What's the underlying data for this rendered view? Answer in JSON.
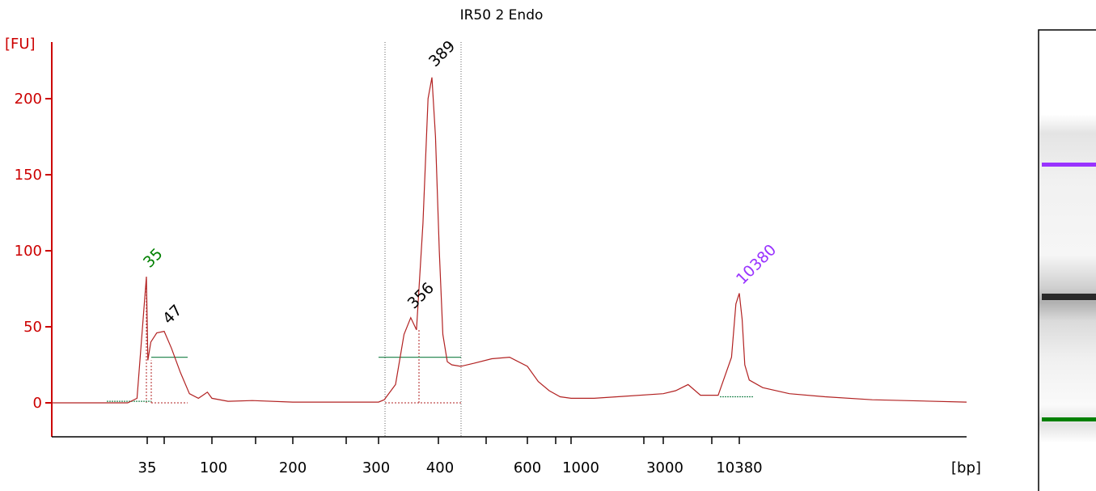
{
  "chart_data": {
    "type": "line",
    "title": "IR50 2 Endo",
    "ylabel": "[FU]",
    "xlabel": "[bp]",
    "ylim": [
      -20,
      225
    ],
    "yticks": [
      0,
      50,
      100,
      150,
      200
    ],
    "xticks": [
      "35",
      "100",
      "200",
      "300",
      "400",
      "600",
      "1000",
      "3000",
      "10380"
    ],
    "grid": false,
    "colors": {
      "trace": "#b22222",
      "axis": "#cc0000",
      "baseline": "#2e8b57",
      "lower_marker": "#008000",
      "upper_marker": "#9933ff",
      "peak_label": "#000000"
    },
    "peaks": [
      {
        "label": "35",
        "color": "#008000",
        "value": 83
      },
      {
        "label": "47",
        "color": "#000000",
        "value": 47
      },
      {
        "label": "356",
        "color": "#000000",
        "value": 56
      },
      {
        "label": "389",
        "color": "#000000",
        "value": 214
      },
      {
        "label": "10380",
        "color": "#9933ff",
        "value": 72
      }
    ],
    "series": [
      {
        "values": [
          [
            33,
            0.0
          ],
          [
            34,
            3
          ],
          [
            35,
            83
          ],
          [
            36,
            28
          ],
          [
            38,
            40
          ],
          [
            42,
            46
          ],
          [
            47,
            47
          ],
          [
            55,
            36
          ],
          [
            65,
            20
          ],
          [
            75,
            6
          ],
          [
            85,
            3
          ],
          [
            90,
            5
          ],
          [
            95,
            7
          ],
          [
            100,
            3
          ],
          [
            120,
            1
          ],
          [
            150,
            1.5
          ],
          [
            200,
            0.5
          ],
          [
            250,
            0.5
          ],
          [
            300,
            0.5
          ],
          [
            310,
            2
          ],
          [
            330,
            12
          ],
          [
            345,
            45
          ],
          [
            356,
            56
          ],
          [
            365,
            48
          ],
          [
            375,
            118
          ],
          [
            383,
            200
          ],
          [
            389,
            214
          ],
          [
            395,
            175
          ],
          [
            402,
            100
          ],
          [
            410,
            45
          ],
          [
            420,
            27
          ],
          [
            430,
            25
          ],
          [
            450,
            24
          ],
          [
            480,
            26
          ],
          [
            520,
            29
          ],
          [
            560,
            30
          ],
          [
            600,
            24
          ],
          [
            700,
            14
          ],
          [
            800,
            8
          ],
          [
            900,
            4
          ],
          [
            1000,
            3
          ],
          [
            1500,
            3
          ],
          [
            2000,
            4
          ],
          [
            3000,
            6
          ],
          [
            4000,
            8
          ],
          [
            5000,
            12
          ],
          [
            6000,
            5
          ],
          [
            8000,
            5
          ],
          [
            9500,
            30
          ],
          [
            10000,
            65
          ],
          [
            10380,
            72
          ],
          [
            10700,
            55
          ],
          [
            11000,
            25
          ],
          [
            11500,
            15
          ],
          [
            13000,
            10
          ],
          [
            16000,
            6
          ],
          [
            20000,
            4
          ],
          [
            30000,
            2
          ],
          [
            50000,
            0.5
          ]
        ]
      }
    ]
  },
  "gel": {
    "upper_marker_color": "#9933ff",
    "lower_marker_color": "#008000"
  }
}
